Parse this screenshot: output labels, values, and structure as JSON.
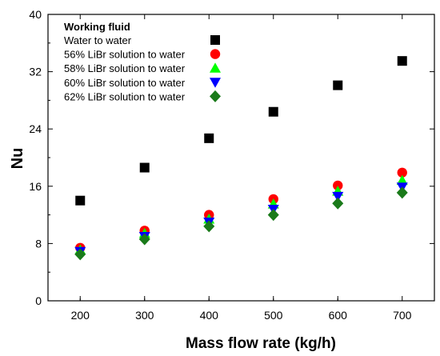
{
  "chart_data": {
    "type": "scatter",
    "xlabel": "Mass flow rate (kg/h)",
    "ylabel": "Nu",
    "xlim": [
      150,
      750
    ],
    "ylim": [
      0,
      40
    ],
    "x_ticks": [
      200,
      300,
      400,
      500,
      600,
      700
    ],
    "y_ticks": [
      0,
      8,
      16,
      24,
      32,
      40
    ],
    "x": [
      200,
      300,
      400,
      500,
      600,
      700
    ],
    "legend": {
      "title": "Working fluid",
      "placement": "top-left"
    },
    "series": [
      {
        "name": "Water to water",
        "marker": "square",
        "color": "#000000",
        "values": [
          14.0,
          18.6,
          22.7,
          26.4,
          30.1,
          33.5
        ]
      },
      {
        "name": "56% LiBr solution to water",
        "marker": "circle",
        "color": "#ff0000",
        "values": [
          7.4,
          9.8,
          12.0,
          14.2,
          16.1,
          17.9
        ]
      },
      {
        "name": "58% LiBr solution to water",
        "marker": "triangle-up",
        "color": "#00ff00",
        "values": [
          7.1,
          9.4,
          11.4,
          13.5,
          15.3,
          16.8
        ]
      },
      {
        "name": "60% LiBr solution to water",
        "marker": "triangle-down",
        "color": "#0000ff",
        "values": [
          6.9,
          9.0,
          11.0,
          12.8,
          14.6,
          15.9
        ]
      },
      {
        "name": "62% LiBr solution to water",
        "marker": "diamond",
        "color": "#1a7a1a",
        "values": [
          6.5,
          8.6,
          10.4,
          12.0,
          13.6,
          15.1
        ]
      }
    ]
  }
}
